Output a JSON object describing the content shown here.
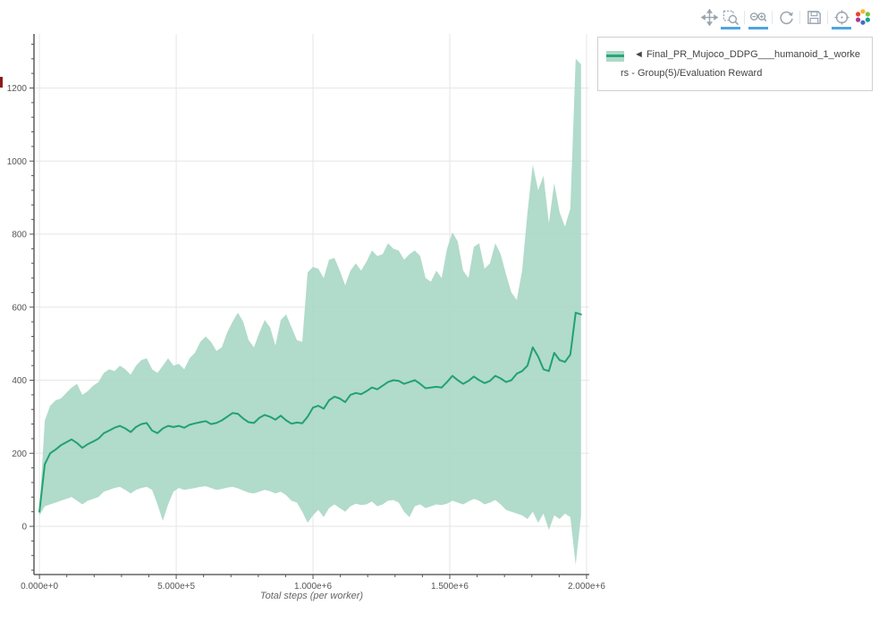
{
  "legend": {
    "label": "◄ Final_PR_Mujoco_DDPG___humanoid_1_workers - Group(5)/Evaluation Reward"
  },
  "modebar": {
    "icons": [
      {
        "name": "pan-icon",
        "active": false
      },
      {
        "name": "box-zoom-icon",
        "active": true
      },
      {
        "name": "zoom-in-out-icon",
        "active": true
      },
      {
        "name": "autoscale-icon",
        "active": false
      },
      {
        "name": "save-icon",
        "active": false
      },
      {
        "name": "reset-axes-icon",
        "active": true
      },
      {
        "name": "logo-icon",
        "active": false
      }
    ]
  },
  "colors": {
    "band": "#a9d7c5",
    "line": "#21a175",
    "grid": "#e6e6e6",
    "axis": "#444444",
    "tick": "#555555",
    "tick_label": "#555555",
    "modebar_icon": "#9aa5b1",
    "active_underline": "#4da6e0",
    "legend_border": "#cfcfcf",
    "clipped_axis_title": "#8b1a1a"
  },
  "chart_data": {
    "type": "line",
    "title": "",
    "xlabel": "Total steps (per worker)",
    "ylabel": "",
    "xlim": [
      -20000,
      2010000
    ],
    "ylim": [
      -132,
      1348
    ],
    "x_ticks": {
      "values": [
        0,
        500000,
        1000000,
        1500000,
        2000000
      ],
      "labels": [
        "0.000e+0",
        "5.000e+5",
        "1.000e+6",
        "1.500e+6",
        "2.000e+6"
      ]
    },
    "y_ticks": [
      0,
      200,
      400,
      600,
      800,
      1000,
      1200
    ],
    "x_minor_step": 100000,
    "y_minor_step": 40,
    "grid": true,
    "legend_position": "top-right",
    "x_start": 0,
    "x_end": 1980000,
    "series": [
      {
        "name": "Final_PR_Mujoco_DDPG___humanoid_1_workers - Group(5)/Evaluation Reward",
        "color": "#21a175",
        "band_color": "#a9d7c5",
        "mean": [
          40,
          170,
          200,
          210,
          222,
          230,
          238,
          228,
          215,
          225,
          232,
          240,
          255,
          262,
          270,
          275,
          268,
          258,
          272,
          280,
          283,
          262,
          255,
          268,
          275,
          272,
          275,
          270,
          278,
          282,
          285,
          288,
          280,
          283,
          290,
          300,
          310,
          308,
          295,
          285,
          283,
          297,
          305,
          300,
          292,
          303,
          290,
          281,
          284,
          282,
          300,
          325,
          330,
          322,
          345,
          355,
          350,
          340,
          360,
          365,
          362,
          370,
          380,
          375,
          385,
          395,
          400,
          398,
          390,
          395,
          400,
          390,
          378,
          380,
          382,
          380,
          395,
          412,
          400,
          390,
          398,
          410,
          400,
          392,
          398,
          412,
          405,
          395,
          400,
          418,
          425,
          440,
          490,
          465,
          430,
          425,
          475,
          455,
          450,
          470,
          585,
          580
        ],
        "upper": [
          45,
          290,
          330,
          345,
          350,
          365,
          380,
          390,
          360,
          370,
          385,
          395,
          420,
          430,
          425,
          440,
          430,
          415,
          440,
          455,
          460,
          430,
          420,
          440,
          460,
          440,
          445,
          430,
          460,
          475,
          505,
          520,
          505,
          480,
          490,
          530,
          560,
          585,
          560,
          510,
          490,
          530,
          565,
          545,
          495,
          565,
          580,
          545,
          510,
          505,
          695,
          710,
          705,
          680,
          730,
          735,
          700,
          660,
          700,
          720,
          700,
          725,
          755,
          740,
          745,
          775,
          760,
          755,
          730,
          745,
          755,
          740,
          680,
          670,
          700,
          680,
          760,
          805,
          780,
          700,
          680,
          765,
          775,
          705,
          720,
          775,
          745,
          690,
          640,
          620,
          700,
          860,
          990,
          920,
          960,
          830,
          940,
          860,
          820,
          870,
          1280,
          1265
        ],
        "lower": [
          30,
          55,
          60,
          65,
          70,
          75,
          80,
          70,
          60,
          70,
          75,
          80,
          95,
          100,
          105,
          108,
          100,
          90,
          100,
          105,
          108,
          100,
          60,
          15,
          60,
          95,
          105,
          100,
          102,
          105,
          108,
          110,
          105,
          100,
          102,
          106,
          108,
          104,
          98,
          92,
          90,
          95,
          100,
          96,
          90,
          95,
          85,
          70,
          65,
          40,
          10,
          30,
          45,
          25,
          50,
          60,
          50,
          40,
          55,
          62,
          58,
          60,
          68,
          55,
          60,
          70,
          72,
          65,
          40,
          25,
          55,
          60,
          50,
          55,
          60,
          58,
          62,
          70,
          65,
          60,
          68,
          75,
          70,
          60,
          65,
          72,
          60,
          45,
          40,
          35,
          30,
          20,
          40,
          10,
          35,
          -10,
          30,
          20,
          35,
          25,
          -105,
          30
        ]
      }
    ]
  }
}
